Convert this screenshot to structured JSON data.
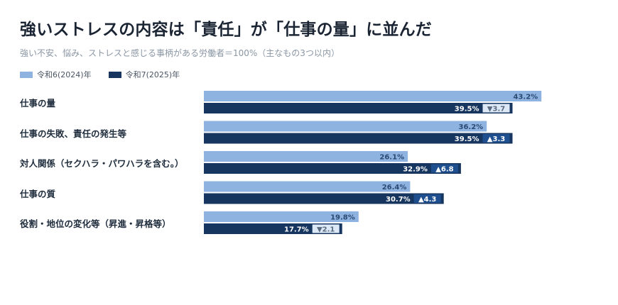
{
  "colors": {
    "series_2024": "#8fb3e0",
    "series_2025": "#17365f",
    "delta_bg": "#dce8f6",
    "delta_up": "#1f4f8f"
  },
  "chart_data": {
    "type": "bar",
    "orientation": "horizontal",
    "title": "強いストレスの内容は「責任」が「仕事の量」に並んだ",
    "subtitle": "強い不安、悩み、ストレスと感じる事柄がある労働者＝100%（主なもの3つ以内）",
    "legend_position": "top-left",
    "categories": [
      "仕事の量",
      "仕事の失敗、責任の発生等",
      "対人関係（セクハラ・パワハラを含む。）",
      "仕事の質",
      "役割・地位の変化等（昇進・昇格等）"
    ],
    "series": [
      {
        "name": "令和6(2024)年",
        "values": [
          43.2,
          36.2,
          26.1,
          26.4,
          19.8
        ],
        "labels": [
          "43.2%",
          "36.2%",
          "26.1%",
          "26.4%",
          "19.8%"
        ]
      },
      {
        "name": "令和7(2025)年",
        "values": [
          39.5,
          39.5,
          32.9,
          30.7,
          17.7
        ],
        "labels": [
          "39.5%",
          "39.5%",
          "32.9%",
          "30.7%",
          "17.7%"
        ]
      }
    ],
    "changes": [
      {
        "direction": "down",
        "text": "▼3.7"
      },
      {
        "direction": "up",
        "text": "▲3.3"
      },
      {
        "direction": "up",
        "text": "▲6.8"
      },
      {
        "direction": "up",
        "text": "▲4.3"
      },
      {
        "direction": "down",
        "text": "▼2.1"
      }
    ],
    "grid": false
  }
}
